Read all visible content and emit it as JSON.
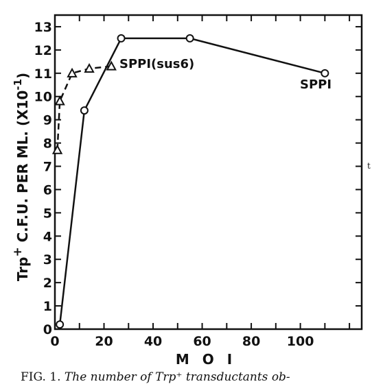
{
  "chart_data": {
    "type": "line",
    "title": "",
    "xlabel": "M O I",
    "ylabel_parts": [
      "Trp",
      "+",
      " C.F.U. PER ML. (X10",
      "-1",
      ")"
    ],
    "xlim": [
      0,
      125
    ],
    "ylim": [
      0,
      13.5
    ],
    "xticks": [
      0,
      20,
      40,
      60,
      80,
      100
    ],
    "xticks_unlabeled": [
      10,
      30,
      50,
      70,
      90,
      110,
      120
    ],
    "yticks": [
      0,
      1,
      2,
      3,
      4,
      5,
      6,
      7,
      8,
      9,
      10,
      11,
      12,
      13
    ],
    "grid": false,
    "series": [
      {
        "name": "SPPI",
        "marker": "circle",
        "line": "solid",
        "color": "#111111",
        "x": [
          2,
          12,
          27,
          55,
          110
        ],
        "y": [
          0.2,
          9.4,
          12.5,
          12.5,
          11.0
        ]
      },
      {
        "name": "SPPI(sus6)",
        "marker": "triangle",
        "line": "dashed",
        "color": "#111111",
        "x": [
          1,
          2,
          7,
          14,
          23
        ],
        "y": [
          7.7,
          9.8,
          11.0,
          11.2,
          11.3
        ]
      }
    ]
  },
  "stray_mark": "t",
  "caption": {
    "prefix": "FIG. 1.",
    "text": "The number of Trp⁺ transductants ob-"
  }
}
